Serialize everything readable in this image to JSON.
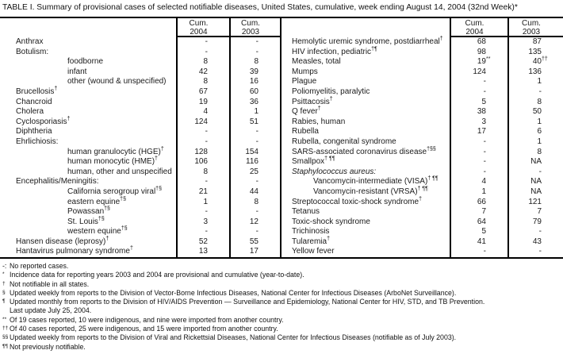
{
  "title": "TABLE I. Summary of provisional cases of selected notifiable diseases, United States, cumulative, week ending August 14, 2004 (32nd Week)*",
  "table": {
    "header": {
      "cum": "Cum.",
      "y2004": "2004",
      "y2003": "2003"
    },
    "left_rows": [
      {
        "label": "Anthrax",
        "c04": "-",
        "c03": "-"
      },
      {
        "label": "Botulism:",
        "c04": "-",
        "c03": "-"
      },
      {
        "label": "foodborne",
        "indent": true,
        "c04": "8",
        "c03": "8"
      },
      {
        "label": "infant",
        "indent": true,
        "c04": "42",
        "c03": "39"
      },
      {
        "label": "other (wound & unspecified)",
        "indent": true,
        "c04": "8",
        "c03": "16"
      },
      {
        "label": "Brucellosis",
        "sup": "†",
        "c04": "67",
        "c03": "60"
      },
      {
        "label": "Chancroid",
        "c04": "19",
        "c03": "36"
      },
      {
        "label": "Cholera",
        "c04": "4",
        "c03": "1"
      },
      {
        "label": "Cyclosporiasis",
        "sup": "†",
        "c04": "124",
        "c03": "51"
      },
      {
        "label": "Diphtheria",
        "c04": "-",
        "c03": "-"
      },
      {
        "label": "Ehrlichiosis:",
        "c04": "-",
        "c03": "-"
      },
      {
        "label": "human granulocytic (HGE)",
        "sup": "†",
        "indent": true,
        "c04": "128",
        "c03": "154"
      },
      {
        "label": "human monocytic (HME)",
        "sup": "†",
        "indent": true,
        "c04": "106",
        "c03": "116"
      },
      {
        "label": "human, other and unspecified",
        "indent": true,
        "c04": "8",
        "c03": "25"
      },
      {
        "label": "Encephalitis/Meningitis:",
        "c04": "-",
        "c03": "-"
      },
      {
        "label": "California serogroup viral",
        "sup": "†§",
        "indent": true,
        "c04": "21",
        "c03": "44"
      },
      {
        "label": "eastern equine",
        "sup": "†§",
        "indent": true,
        "c04": "1",
        "c03": "8"
      },
      {
        "label": "Powassan",
        "sup": "†§",
        "indent": true,
        "c04": "-",
        "c03": "-"
      },
      {
        "label": "St. Louis",
        "sup": "†§",
        "indent": true,
        "c04": "3",
        "c03": "12"
      },
      {
        "label": "western equine",
        "sup": "†§",
        "indent": true,
        "c04": "-",
        "c03": "-"
      },
      {
        "label": "Hansen disease (leprosy)",
        "sup": "†",
        "c04": "52",
        "c03": "55"
      },
      {
        "label": "Hantavirus pulmonary syndrome",
        "sup": "†",
        "c04": "13",
        "c03": "17"
      }
    ],
    "right_rows": [
      {
        "label": "Hemolytic uremic syndrome, postdiarrheal",
        "sup": "†",
        "c04": "68",
        "c03": "87"
      },
      {
        "label": "HIV infection, pediatric",
        "sup": "†¶",
        "c04": "98",
        "c03": "135"
      },
      {
        "label": "Measles, total",
        "c04": "19",
        "c04s": "**",
        "c03": "40",
        "c03s": "††"
      },
      {
        "label": "Mumps",
        "c04": "124",
        "c03": "136"
      },
      {
        "label": "Plague",
        "c04": "-",
        "c03": "1"
      },
      {
        "label": "Poliomyelitis, paralytic",
        "c04": "-",
        "c03": "-"
      },
      {
        "label": "Psittacosis",
        "sup": "†",
        "c04": "5",
        "c03": "8"
      },
      {
        "label": "Q fever",
        "sup": "†",
        "c04": "38",
        "c03": "50"
      },
      {
        "label": "Rabies, human",
        "c04": "3",
        "c03": "1"
      },
      {
        "label": "Rubella",
        "c04": "17",
        "c03": "6"
      },
      {
        "label": "Rubella, congenital syndrome",
        "c04": "-",
        "c03": "1"
      },
      {
        "label": "SARS-associated coronavirus disease",
        "sup": "†§§",
        "c04": "-",
        "c03": "8"
      },
      {
        "label": "Smallpox",
        "sup": "† ¶¶",
        "c04": "-",
        "c03": "NA"
      },
      {
        "label": "Staphylococcus aureus:",
        "italic": true,
        "c04": "-",
        "c03": "-"
      },
      {
        "label": "Vancomycin-intermediate (VISA)",
        "sup": "† ¶¶",
        "indent": true,
        "c04": "4",
        "c03": "NA"
      },
      {
        "label": "Vancomycin-resistant (VRSA)",
        "sup": "† ¶¶",
        "indent": true,
        "c04": "1",
        "c03": "NA"
      },
      {
        "label": "Streptococcal toxic-shock syndrome",
        "sup": "†",
        "c04": "66",
        "c03": "121"
      },
      {
        "label": "Tetanus",
        "c04": "7",
        "c03": "7"
      },
      {
        "label": "Toxic-shock syndrome",
        "c04": "64",
        "c03": "79"
      },
      {
        "label": "Trichinosis",
        "c04": "5",
        "c03": "-"
      },
      {
        "label": "Tularemia",
        "sup": "†",
        "c04": "41",
        "c03": "43"
      },
      {
        "label": "Yellow fever",
        "c04": "-",
        "c03": "-"
      }
    ]
  },
  "footnotes": [
    {
      "marker": "-:",
      "sup": false,
      "text": "No reported cases."
    },
    {
      "marker": "*",
      "sup": true,
      "text": "Incidence data for reporting years 2003 and 2004 are provisional and cumulative (year-to-date)."
    },
    {
      "marker": "†",
      "sup": true,
      "text": "Not notifiable in all states."
    },
    {
      "marker": "§",
      "sup": true,
      "text": "Updated weekly from reports to the Division of Vector-Borne Infectious Diseases, National Center for Infectious Diseases (ArboNet Surveillance)."
    },
    {
      "marker": "¶",
      "sup": true,
      "text": "Updated monthly from reports to the Division of HIV/AIDS Prevention — Surveillance and Epidemiology, National Center for HIV, STD, and TB Prevention."
    },
    {
      "marker": "",
      "sup": false,
      "text": "Last update July 25, 2004."
    },
    {
      "marker": "**",
      "sup": true,
      "text": "Of 19 cases reported, 10 were indigenous, and nine were imported from another country."
    },
    {
      "marker": "††",
      "sup": true,
      "text": "Of 40 cases reported, 25 were indigenous, and 15 were imported from another country."
    },
    {
      "marker": "§§",
      "sup": true,
      "text": "Updated weekly from reports to the Division of Viral and Rickettsial Diseases, National Center for Infectious Diseases (notifiable as of July 2003)."
    },
    {
      "marker": "¶¶",
      "sup": true,
      "text": "Not previously notifiable."
    }
  ]
}
